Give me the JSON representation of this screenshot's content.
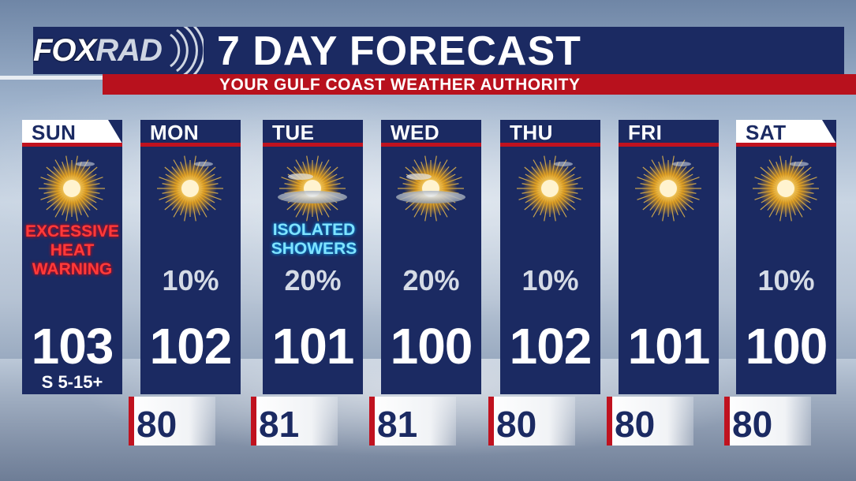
{
  "header": {
    "logo_fox": "FOX",
    "logo_rad": "RAD",
    "title": "7 DAY FORECAST",
    "subtitle": "YOUR GULF COAST WEATHER AUTHORITY"
  },
  "colors": {
    "card_navy": "#1b2a62",
    "accent_red": "#c0121f",
    "warning_red": "#ff3b3b",
    "shower_cyan": "#7fe3ff"
  },
  "days": [
    {
      "name": "SUN",
      "icon": "sun-icon",
      "warning": [
        "EXCESSIVE",
        "HEAT",
        "WARNING"
      ],
      "precip": "",
      "high": "103",
      "wind": "S 5-15+",
      "low": "80"
    },
    {
      "name": "MON",
      "icon": "sun-icon",
      "precip": "10%",
      "high": "102",
      "low": "80"
    },
    {
      "name": "TUE",
      "icon": "partly-sunny-icon",
      "precip": "20%",
      "high": "101",
      "low": "81",
      "description": [
        "ISOLATED",
        "SHOWERS"
      ]
    },
    {
      "name": "WED",
      "icon": "partly-sunny-icon",
      "precip": "20%",
      "high": "100",
      "low": "81"
    },
    {
      "name": "THU",
      "icon": "sun-icon",
      "precip": "10%",
      "high": "102",
      "low": "80"
    },
    {
      "name": "FRI",
      "icon": "sun-icon",
      "precip": "",
      "high": "101",
      "low": "80"
    },
    {
      "name": "SAT",
      "icon": "sun-icon",
      "precip": "10%",
      "high": "100",
      "low": "80"
    }
  ]
}
